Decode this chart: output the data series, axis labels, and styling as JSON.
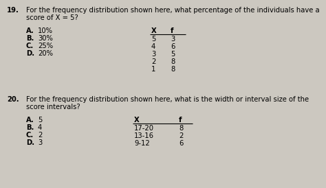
{
  "background_color": "#ccc8c0",
  "q19_number": "19.",
  "q19_text1": "For the frequency distribution shown here, what percentage of the individuals have a",
  "q19_text2": "score of X = 5?",
  "q19_options": [
    [
      "A.",
      "10%"
    ],
    [
      "B.",
      "30%"
    ],
    [
      "C.",
      "25%"
    ],
    [
      "D.",
      "20%"
    ]
  ],
  "q19_table_header": [
    "X",
    "f"
  ],
  "q19_table_rows": [
    [
      "5",
      "3"
    ],
    [
      "4",
      "6"
    ],
    [
      "3",
      "5"
    ],
    [
      "2",
      "8"
    ],
    [
      "1",
      "8"
    ]
  ],
  "q20_number": "20.",
  "q20_text1": "For the frequency distribution shown here, what is the width or interval size of the",
  "q20_text2": "score intervals?",
  "q20_options": [
    [
      "A.",
      "5"
    ],
    [
      "B.",
      "4"
    ],
    [
      "C.",
      "2"
    ],
    [
      "D.",
      "3"
    ]
  ],
  "q20_table_header": [
    "X",
    "f"
  ],
  "q20_table_rows": [
    [
      "17-20",
      "8"
    ],
    [
      "13-16",
      "2"
    ],
    [
      "9-12",
      "6"
    ]
  ],
  "font_size": 7.2,
  "font_family": "DejaVu Sans"
}
